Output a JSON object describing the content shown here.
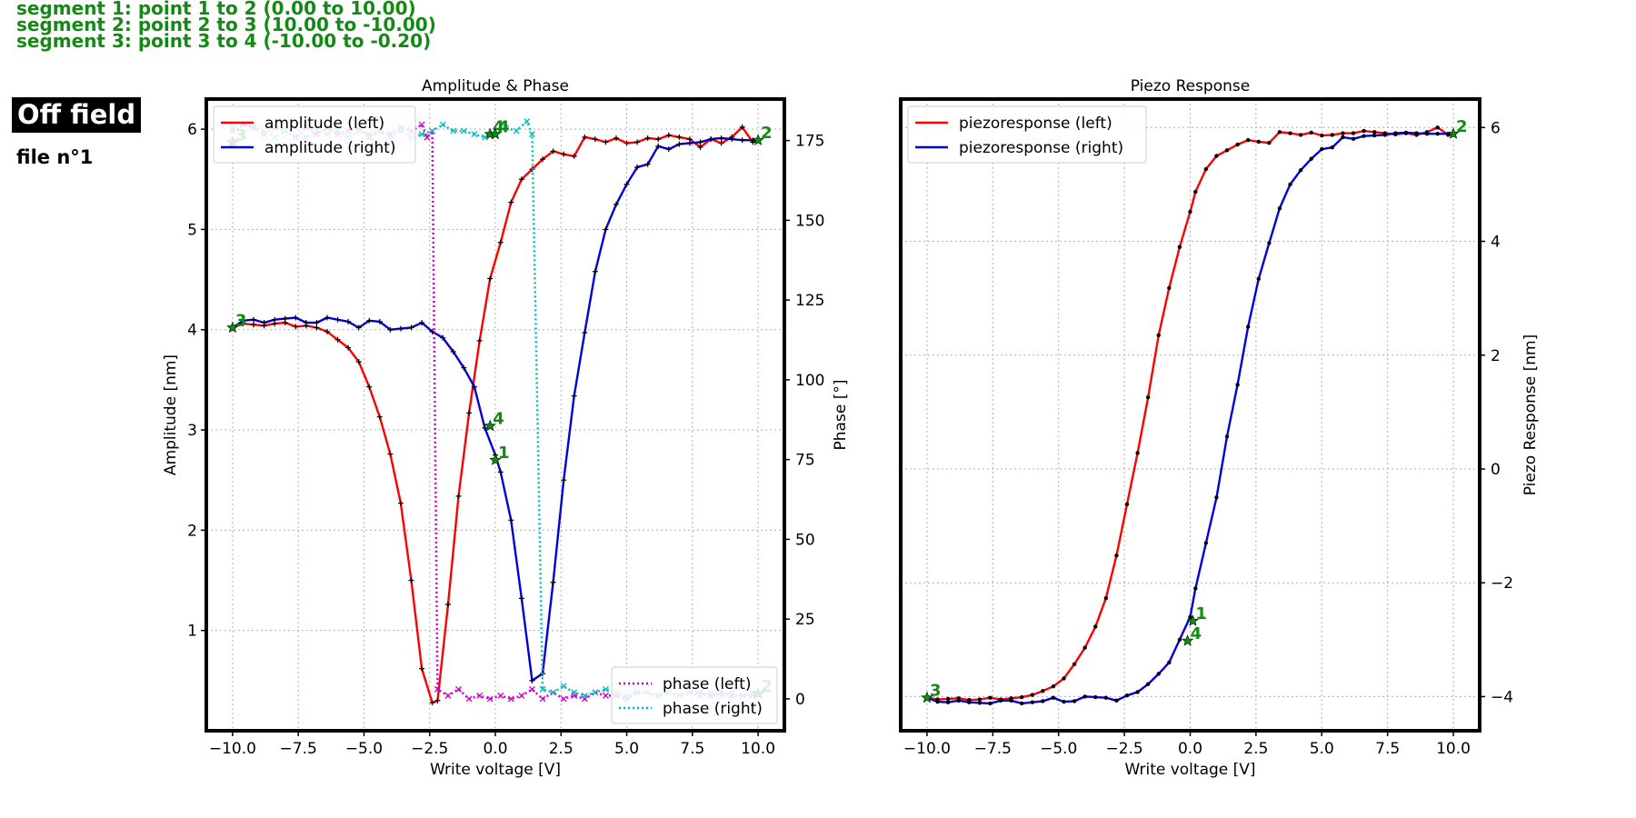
{
  "header": {
    "segments": [
      "segment 1: point 1 to 2 (0.00 to 10.00)",
      "segment 2: point 2 to 3 (10.00 to -10.00)",
      "segment 3: point 3 to 4 (-10.00 to -0.20)"
    ],
    "mode_badge": "Off field",
    "file_label": "file n°1"
  },
  "colors": {
    "amplitude_left": "#ff0000",
    "amplitude_right": "#0000dd",
    "phase_left": "#cc00cc",
    "phase_right": "#00bbbb",
    "markers": "#000000",
    "point_labels": "#138a13"
  },
  "chart_data": [
    {
      "type": "line",
      "title": "Amplitude & Phase",
      "xlabel": "Write voltage [V]",
      "ylabel": "Amplitude [nm]",
      "y2label": "Phase [°]",
      "xlim": [
        -11.0,
        11.0
      ],
      "ylim": [
        0.0,
        6.3
      ],
      "y2lim": [
        -10,
        188
      ],
      "xticks": [
        -10.0,
        -7.5,
        -5.0,
        -2.5,
        0.0,
        2.5,
        5.0,
        7.5,
        10.0
      ],
      "xtick_labels": [
        "−10.0",
        "−7.5",
        "−5.0",
        "−2.5",
        "0.0",
        "2.5",
        "5.0",
        "7.5",
        "10.0"
      ],
      "yticks": [
        1,
        2,
        3,
        4,
        5,
        6
      ],
      "ytick_labels": [
        "1",
        "2",
        "3",
        "4",
        "5",
        "6"
      ],
      "y2ticks": [
        0,
        25,
        50,
        75,
        100,
        125,
        150,
        175
      ],
      "y2tick_labels": [
        "0",
        "25",
        "50",
        "75",
        "100",
        "125",
        "150",
        "175"
      ],
      "grid": true,
      "legend_top_left": [
        "amplitude (left)",
        "amplitude (right)"
      ],
      "legend_bottom_right": [
        "phase (left)",
        "phase (right)"
      ],
      "series": [
        {
          "name": "amplitude (left)",
          "axis": "left",
          "style": "solid",
          "x": [
            -10.0,
            -9.6,
            -9.2,
            -8.8,
            -8.4,
            -8.0,
            -7.6,
            -7.2,
            -6.8,
            -6.4,
            -6.0,
            -5.6,
            -5.2,
            -4.8,
            -4.4,
            -4.0,
            -3.6,
            -3.2,
            -2.8,
            -2.4,
            -2.2,
            -1.8,
            -1.4,
            -1.0,
            -0.6,
            -0.2,
            0.2,
            0.6,
            1.0,
            1.4,
            1.8,
            2.2,
            2.6,
            3.0,
            3.4,
            3.8,
            4.2,
            4.6,
            5.0,
            5.4,
            5.8,
            6.2,
            6.6,
            7.0,
            7.4,
            7.8,
            8.2,
            8.6,
            9.0,
            9.4,
            9.8,
            10.0
          ],
          "y": [
            4.02,
            4.06,
            4.05,
            4.04,
            4.06,
            4.07,
            4.03,
            4.04,
            4.02,
            3.98,
            3.9,
            3.82,
            3.68,
            3.43,
            3.13,
            2.76,
            2.27,
            1.5,
            0.62,
            0.28,
            0.3,
            1.26,
            2.34,
            3.17,
            3.89,
            4.51,
            4.87,
            5.27,
            5.5,
            5.6,
            5.7,
            5.78,
            5.75,
            5.73,
            5.92,
            5.9,
            5.87,
            5.91,
            5.86,
            5.87,
            5.91,
            5.9,
            5.94,
            5.92,
            5.9,
            5.82,
            5.9,
            5.86,
            5.92,
            6.02,
            5.87,
            5.89
          ]
        },
        {
          "name": "amplitude (right)",
          "axis": "left",
          "style": "solid",
          "x": [
            -10.0,
            -9.6,
            -9.2,
            -8.8,
            -8.4,
            -8.0,
            -7.6,
            -7.2,
            -6.8,
            -6.4,
            -6.0,
            -5.6,
            -5.2,
            -4.8,
            -4.4,
            -4.0,
            -3.6,
            -3.2,
            -2.8,
            -2.4,
            -2.0,
            -1.6,
            -1.2,
            -0.8,
            -0.4,
            0.0,
            0.2,
            0.6,
            1.0,
            1.4,
            1.8,
            2.2,
            2.6,
            3.0,
            3.4,
            3.8,
            4.2,
            4.6,
            5.0,
            5.4,
            5.8,
            6.2,
            6.6,
            7.0,
            7.4,
            7.8,
            8.2,
            8.6,
            9.0,
            9.4,
            9.8,
            10.0
          ],
          "y": [
            4.02,
            4.09,
            4.1,
            4.07,
            4.1,
            4.11,
            4.12,
            4.07,
            4.07,
            4.12,
            4.1,
            4.08,
            4.02,
            4.09,
            4.08,
            4.0,
            4.01,
            4.02,
            4.07,
            3.98,
            3.92,
            3.78,
            3.62,
            3.43,
            3.02,
            2.75,
            2.58,
            2.1,
            1.32,
            0.5,
            0.57,
            1.48,
            2.5,
            3.34,
            3.97,
            4.58,
            5.0,
            5.25,
            5.45,
            5.62,
            5.65,
            5.83,
            5.8,
            5.85,
            5.86,
            5.87,
            5.9,
            5.91,
            5.9,
            5.89,
            5.89,
            5.89
          ]
        },
        {
          "name": "phase (left)",
          "axis": "right",
          "style": "dotted",
          "x": [
            -10.0,
            -9.6,
            -9.2,
            -8.8,
            -8.4,
            -8.0,
            -7.6,
            -7.2,
            -6.8,
            -6.4,
            -6.0,
            -5.6,
            -5.2,
            -4.8,
            -4.4,
            -4.0,
            -3.6,
            -3.2,
            -2.8,
            -2.6,
            -2.4,
            -2.2,
            -1.8,
            -1.4,
            -1.0,
            -0.6,
            -0.2,
            0.2,
            0.6,
            1.0,
            1.4,
            1.8,
            2.2,
            2.6,
            3.0,
            3.4,
            3.8,
            4.2,
            4.6,
            5.0,
            5.4,
            5.8,
            6.2,
            6.6,
            7.0,
            7.4,
            7.8,
            8.2,
            8.6,
            9.0,
            9.4,
            9.8,
            10.0
          ],
          "y": [
            178,
            180,
            179,
            177,
            179,
            178,
            176,
            179,
            177,
            179,
            177,
            178,
            179,
            176,
            178,
            177,
            179,
            178,
            180,
            176,
            178,
            3,
            1,
            3,
            0,
            1,
            0,
            1,
            0,
            1,
            3,
            0,
            2,
            0,
            1,
            0,
            2,
            1,
            1,
            0,
            2,
            2,
            1,
            2,
            1,
            2,
            2,
            1,
            2,
            1,
            1,
            1,
            1
          ]
        },
        {
          "name": "phase (right)",
          "axis": "right",
          "style": "dotted",
          "x": [
            -10.0,
            -9.6,
            -9.2,
            -8.8,
            -8.4,
            -8.0,
            -7.6,
            -7.2,
            -6.8,
            -6.4,
            -6.0,
            -5.6,
            -5.2,
            -4.8,
            -4.4,
            -4.0,
            -3.6,
            -3.2,
            -2.8,
            -2.4,
            -2.0,
            -1.6,
            -1.2,
            -0.8,
            -0.4,
            0.0,
            0.4,
            0.8,
            1.2,
            1.4,
            1.8,
            2.2,
            2.6,
            3.0,
            3.4,
            3.8,
            4.2,
            4.6,
            5.0,
            5.4,
            5.8,
            6.2,
            6.6,
            7.0,
            7.4,
            7.8,
            8.2,
            8.6,
            9.0,
            9.4,
            9.8,
            10.0
          ],
          "y": [
            179,
            177,
            180,
            178,
            176,
            178,
            179,
            176,
            178,
            177,
            178,
            176,
            178,
            177,
            178,
            176,
            178,
            176,
            177,
            178,
            180,
            178,
            178,
            177,
            176,
            178,
            179,
            178,
            181,
            177,
            3,
            2,
            4,
            2,
            1,
            2,
            3,
            2,
            1,
            2,
            2,
            1,
            2,
            1,
            2,
            1,
            2,
            1,
            2,
            1,
            2,
            1
          ]
        }
      ],
      "point_markers": [
        {
          "label": "1",
          "x": 0.0,
          "y": 2.7
        },
        {
          "label": "2",
          "x": 10.0,
          "y": 5.89
        },
        {
          "label": "3",
          "x": -10.0,
          "y": 4.02
        },
        {
          "label": "4",
          "x": -0.2,
          "y": 3.04
        },
        {
          "label": "3",
          "x": -10.0,
          "y": 5.87
        },
        {
          "label": "4",
          "x": -0.2,
          "y": 5.95
        },
        {
          "label": "4",
          "x": 0.0,
          "y": 5.95
        },
        {
          "label": "2",
          "x": 10.0,
          "y": 0.37
        }
      ]
    },
    {
      "type": "line",
      "title": "Piezo Response",
      "xlabel": "Write voltage [V]",
      "ylabel": "Piezo Response [nm]",
      "xlim": [
        -11.0,
        11.0
      ],
      "ylim": [
        -4.6,
        6.5
      ],
      "xticks": [
        -10.0,
        -7.5,
        -5.0,
        -2.5,
        0.0,
        2.5,
        5.0,
        7.5,
        10.0
      ],
      "xtick_labels": [
        "−10.0",
        "−7.5",
        "−5.0",
        "−2.5",
        "0.0",
        "2.5",
        "5.0",
        "7.5",
        "10.0"
      ],
      "yticks": [
        -4,
        -2,
        0,
        2,
        4,
        6
      ],
      "ytick_labels": [
        "−4",
        "−2",
        "0",
        "2",
        "4",
        "6"
      ],
      "grid": true,
      "legend_top_left": [
        "piezoresponse (left)",
        "piezoresponse (right)"
      ],
      "series": [
        {
          "name": "piezoresponse (left)",
          "style": "solid",
          "x": [
            -10.0,
            -9.6,
            -9.2,
            -8.8,
            -8.4,
            -8.0,
            -7.6,
            -7.2,
            -6.8,
            -6.4,
            -6.0,
            -5.6,
            -5.2,
            -4.8,
            -4.4,
            -4.0,
            -3.6,
            -3.2,
            -2.8,
            -2.4,
            -2.0,
            -1.6,
            -1.2,
            -0.8,
            -0.4,
            0.0,
            0.2,
            0.6,
            1.0,
            1.4,
            1.8,
            2.2,
            2.6,
            3.0,
            3.4,
            3.8,
            4.2,
            4.6,
            5.0,
            5.4,
            5.8,
            6.2,
            6.6,
            7.0,
            7.4,
            7.8,
            8.2,
            8.6,
            9.0,
            9.4,
            9.8,
            10.0
          ],
          "y": [
            -4.02,
            -4.05,
            -4.04,
            -4.03,
            -4.06,
            -4.05,
            -4.02,
            -4.05,
            -4.03,
            -4.01,
            -3.97,
            -3.9,
            -3.82,
            -3.68,
            -3.43,
            -3.14,
            -2.77,
            -2.27,
            -1.52,
            -0.62,
            0.28,
            1.26,
            2.35,
            3.18,
            3.9,
            4.52,
            4.87,
            5.27,
            5.5,
            5.6,
            5.7,
            5.78,
            5.75,
            5.73,
            5.92,
            5.9,
            5.87,
            5.91,
            5.86,
            5.87,
            5.9,
            5.9,
            5.94,
            5.92,
            5.9,
            5.88,
            5.9,
            5.87,
            5.92,
            6.0,
            5.87,
            5.89
          ]
        },
        {
          "name": "piezoresponse (right)",
          "style": "solid",
          "x": [
            -10.0,
            -9.6,
            -9.2,
            -8.8,
            -8.4,
            -8.0,
            -7.6,
            -7.2,
            -6.8,
            -6.4,
            -6.0,
            -5.6,
            -5.2,
            -4.8,
            -4.4,
            -4.0,
            -3.6,
            -3.2,
            -2.8,
            -2.4,
            -2.0,
            -1.6,
            -1.2,
            -0.8,
            -0.4,
            0.0,
            0.2,
            0.6,
            1.0,
            1.4,
            1.8,
            2.2,
            2.6,
            3.0,
            3.4,
            3.8,
            4.2,
            4.6,
            5.0,
            5.4,
            5.8,
            6.2,
            6.6,
            7.0,
            7.4,
            7.8,
            8.2,
            8.6,
            9.0,
            9.4,
            9.8,
            10.0
          ],
          "y": [
            -4.02,
            -4.09,
            -4.1,
            -4.07,
            -4.1,
            -4.11,
            -4.12,
            -4.07,
            -4.07,
            -4.12,
            -4.1,
            -4.08,
            -4.02,
            -4.09,
            -4.08,
            -4.0,
            -4.01,
            -4.02,
            -4.07,
            -3.98,
            -3.92,
            -3.78,
            -3.6,
            -3.4,
            -3.0,
            -2.6,
            -2.1,
            -1.3,
            -0.5,
            0.57,
            1.48,
            2.5,
            3.34,
            3.97,
            4.58,
            5.0,
            5.25,
            5.45,
            5.62,
            5.65,
            5.83,
            5.8,
            5.85,
            5.86,
            5.87,
            5.9,
            5.91,
            5.9,
            5.89,
            5.89,
            5.89,
            5.89
          ]
        }
      ],
      "point_markers": [
        {
          "label": "1",
          "x": 0.1,
          "y": -2.67
        },
        {
          "label": "2",
          "x": 10.0,
          "y": 5.89
        },
        {
          "label": "3",
          "x": -10.0,
          "y": -4.02
        },
        {
          "label": "4",
          "x": -0.1,
          "y": -3.02
        }
      ]
    }
  ]
}
